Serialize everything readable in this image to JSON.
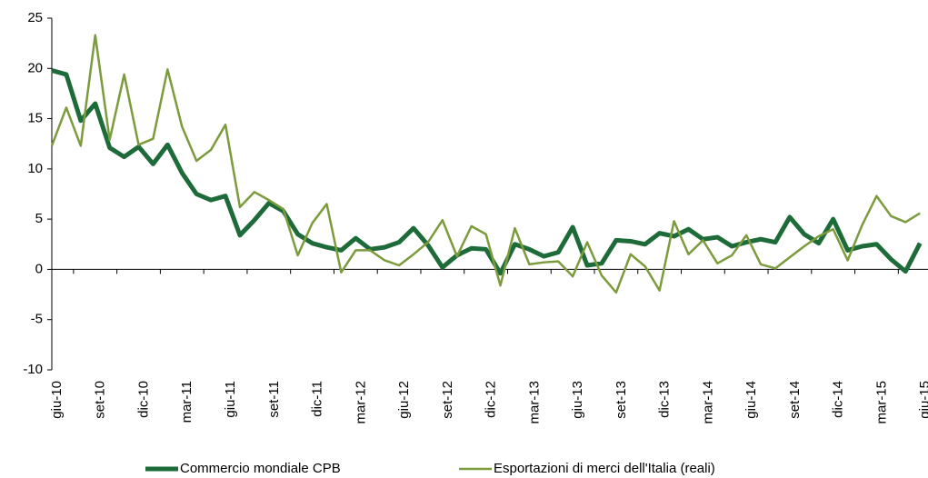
{
  "chart_data": {
    "type": "line",
    "categories": [
      "giu-10",
      null,
      null,
      "set-10",
      null,
      null,
      "dic-10",
      null,
      null,
      "mar-11",
      null,
      null,
      "giu-11",
      null,
      null,
      "set-11",
      null,
      null,
      "dic-11",
      null,
      null,
      "mar-12",
      null,
      null,
      "giu-12",
      null,
      null,
      "set-12",
      null,
      null,
      "dic-12",
      null,
      null,
      "mar-13",
      null,
      null,
      "giu-13",
      null,
      null,
      "set-13",
      null,
      null,
      "dic-13",
      null,
      null,
      "mar-14",
      null,
      null,
      "giu-14",
      null,
      null,
      "set-14",
      null,
      null,
      "dic-14",
      null,
      null,
      "mar-15",
      null,
      null,
      "giu-15"
    ],
    "series": [
      {
        "name": "Commercio mondiale CPB",
        "color": "#1d6b38",
        "values": [
          19.8,
          19.4,
          14.8,
          16.5,
          12.1,
          11.2,
          12.2,
          10.5,
          12.4,
          9.6,
          7.5,
          6.9,
          7.3,
          3.4,
          4.9,
          6.6,
          5.8,
          3.5,
          2.6,
          2.2,
          1.9,
          3.1,
          2.0,
          2.2,
          2.7,
          4.1,
          2.4,
          0.2,
          1.4,
          2.1,
          2.0,
          -0.4,
          2.5,
          2.0,
          1.3,
          1.7,
          4.2,
          0.4,
          0.6,
          2.9,
          2.8,
          2.5,
          3.6,
          3.3,
          4.0,
          3.0,
          3.2,
          2.3,
          2.7,
          3.0,
          2.7,
          5.2,
          3.5,
          2.6,
          5.0,
          1.9,
          2.3,
          2.5,
          1.0,
          -0.2,
          2.6
        ]
      },
      {
        "name": "Esportazioni di merci dell'Italia (reali)",
        "color": "#7c9b3c",
        "values": [
          12.3,
          16.1,
          12.3,
          23.3,
          12.9,
          19.4,
          12.4,
          13.0,
          19.9,
          14.2,
          10.8,
          11.9,
          14.4,
          6.2,
          7.7,
          6.9,
          6.0,
          1.4,
          4.6,
          6.5,
          -0.3,
          1.9,
          1.9,
          0.9,
          0.4,
          1.5,
          2.7,
          4.9,
          1.3,
          4.3,
          3.5,
          -1.6,
          4.1,
          0.5,
          0.7,
          0.8,
          -0.7,
          2.7,
          -0.6,
          -2.3,
          1.5,
          0.3,
          -2.1,
          4.8,
          1.5,
          2.9,
          0.6,
          1.4,
          3.4,
          0.5,
          0.1,
          1.2,
          2.3,
          3.3,
          4.0,
          0.9,
          4.4,
          7.3,
          5.3,
          4.7,
          5.6
        ]
      }
    ],
    "ylim": [
      -10,
      25
    ],
    "yticks": [
      -10,
      -5,
      0,
      5,
      10,
      15,
      20,
      25
    ],
    "grid": false,
    "legend": "bottom"
  }
}
